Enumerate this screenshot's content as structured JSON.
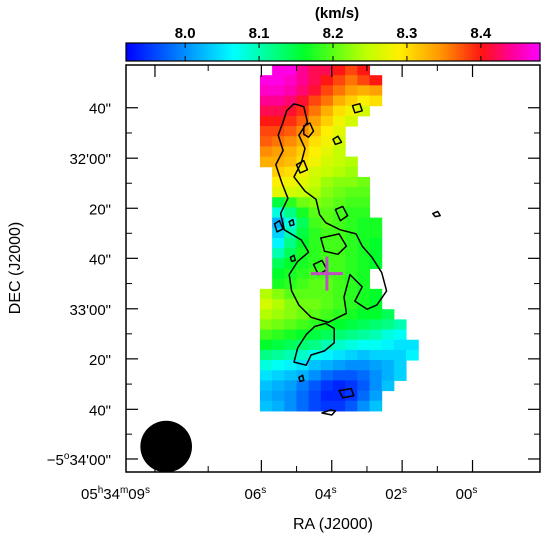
{
  "colorbar": {
    "unit_label": "(km/s)",
    "ticks": [
      {
        "value": 8.0,
        "label": "8.0"
      },
      {
        "value": 8.1,
        "label": "8.1"
      },
      {
        "value": 8.2,
        "label": "8.2"
      },
      {
        "value": 8.3,
        "label": "8.3"
      },
      {
        "value": 8.4,
        "label": "8.4"
      }
    ],
    "range": [
      7.92,
      8.48
    ]
  },
  "axes": {
    "xlabel": "RA (J2000)",
    "ylabel": "DEC (J2000)",
    "x_ticks": [
      {
        "h": "05",
        "m": "34",
        "s": "09",
        "frac": 0.07
      },
      {
        "s": "06",
        "frac": 0.327
      },
      {
        "s": "04",
        "frac": 0.497
      },
      {
        "s": "02",
        "frac": 0.667
      },
      {
        "s": "00",
        "frac": 0.837
      }
    ],
    "y_ticks": [
      {
        "label": "40\"",
        "frac": 0.105
      },
      {
        "label": "32'00\"",
        "frac": 0.229
      },
      {
        "label": "20\"",
        "frac": 0.352
      },
      {
        "label": "40\"",
        "frac": 0.475
      },
      {
        "label": "33'00\"",
        "frac": 0.599
      },
      {
        "label": "20\"",
        "frac": 0.722
      },
      {
        "label": "40\"",
        "frac": 0.846
      },
      {
        "prefix": "−5",
        "deg": "o",
        "rest": "34'00\"",
        "frac": 0.968
      }
    ]
  },
  "map": {
    "x_range": [
      0,
      34
    ],
    "y_range": [
      0,
      40
    ],
    "rows": [
      {
        "x0": 12,
        "v": [
          8.47,
          8.47,
          8.44,
          8.42,
          8.42,
          8.4,
          8.38,
          8.4
        ]
      },
      {
        "x0": 11,
        "v": [
          8.47,
          8.47,
          8.46,
          8.44,
          8.42,
          8.4,
          8.38,
          8.36,
          8.38,
          8.4
        ]
      },
      {
        "x0": 11,
        "v": [
          8.46,
          8.46,
          8.45,
          8.43,
          8.41,
          8.38,
          8.36,
          8.34,
          8.33,
          8.34
        ]
      },
      {
        "x0": 11,
        "v": [
          8.44,
          8.44,
          8.43,
          8.41,
          8.38,
          8.36,
          8.33,
          8.31,
          8.29,
          8.3
        ]
      },
      {
        "x0": 11,
        "v": [
          8.42,
          8.42,
          8.41,
          8.39,
          8.36,
          8.33,
          8.3,
          8.28,
          8.26
        ]
      },
      {
        "x0": 11,
        "v": [
          8.4,
          8.4,
          8.39,
          8.37,
          8.34,
          8.31,
          8.28,
          8.26
        ]
      },
      {
        "x0": 11,
        "v": [
          8.38,
          8.38,
          8.37,
          8.35,
          8.32,
          8.29,
          8.27
        ]
      },
      {
        "x0": 11,
        "v": [
          8.37,
          8.36,
          8.35,
          8.33,
          8.3,
          8.28,
          8.26
        ]
      },
      {
        "x0": 11,
        "v": [
          8.35,
          8.34,
          8.33,
          8.31,
          8.29,
          8.27,
          8.25
        ]
      },
      {
        "x0": 11,
        "v": [
          8.33,
          8.33,
          8.32,
          8.3,
          8.28,
          8.26,
          8.25,
          8.24
        ]
      },
      {
        "x0": 12,
        "v": [
          8.31,
          8.3,
          8.28,
          8.26,
          8.25,
          8.24,
          8.23
        ]
      },
      {
        "x0": 12,
        "v": [
          8.29,
          8.28,
          8.27,
          8.25,
          8.23,
          8.22,
          8.22,
          8.21
        ]
      },
      {
        "x0": 12,
        "v": [
          8.27,
          8.26,
          8.25,
          8.24,
          8.22,
          8.21,
          8.2,
          8.2
        ]
      },
      {
        "x0": 12,
        "v": [
          8.15,
          8.18,
          8.21,
          8.22,
          8.21,
          8.2,
          8.19,
          8.19
        ]
      },
      {
        "x0": 12,
        "v": [
          8.08,
          8.12,
          8.17,
          8.2,
          8.2,
          8.19,
          8.18,
          8.18
        ]
      },
      {
        "x0": 12,
        "v": [
          8.02,
          8.08,
          8.14,
          8.19,
          8.2,
          8.19,
          8.18,
          8.17,
          8.17
        ]
      },
      {
        "x0": 12,
        "v": [
          8.04,
          8.1,
          8.15,
          8.18,
          8.19,
          8.19,
          8.18,
          8.17,
          8.17
        ]
      },
      {
        "x0": 12,
        "v": [
          8.06,
          8.12,
          8.16,
          8.18,
          8.19,
          8.19,
          8.18,
          8.17,
          8.16
        ]
      },
      {
        "x0": 12,
        "v": [
          8.1,
          8.14,
          8.17,
          8.18,
          8.19,
          8.19,
          8.18,
          8.17,
          8.16
        ]
      },
      {
        "x0": 12,
        "v": [
          8.14,
          8.16,
          8.17,
          8.18,
          8.19,
          8.19,
          8.18,
          8.17,
          8.16
        ]
      },
      {
        "x0": 12,
        "v": [
          8.16,
          8.17,
          8.18,
          8.19,
          8.19,
          8.19,
          8.18,
          8.17
        ]
      },
      {
        "x0": 12,
        "v": [
          8.17,
          8.18,
          8.19,
          8.2,
          8.2,
          8.19,
          8.18,
          8.17
        ]
      },
      {
        "x0": 11,
        "v": [
          8.24,
          8.22,
          8.2,
          8.2,
          8.2,
          8.2,
          8.19,
          8.18,
          8.17,
          8.16
        ]
      },
      {
        "x0": 11,
        "v": [
          8.26,
          8.24,
          8.22,
          8.21,
          8.21,
          8.2,
          8.19,
          8.18,
          8.17,
          8.16
        ]
      },
      {
        "x0": 11,
        "v": [
          8.24,
          8.23,
          8.22,
          8.21,
          8.2,
          8.19,
          8.18,
          8.17,
          8.16,
          8.16,
          8.14
        ]
      },
      {
        "x0": 11,
        "v": [
          8.22,
          8.21,
          8.2,
          8.19,
          8.18,
          8.17,
          8.16,
          8.15,
          8.14,
          8.13,
          8.12,
          8.1
        ]
      },
      {
        "x0": 11,
        "v": [
          8.19,
          8.18,
          8.17,
          8.16,
          8.15,
          8.14,
          8.13,
          8.12,
          8.11,
          8.1,
          8.08,
          8.07
        ]
      },
      {
        "x0": 11,
        "v": [
          8.16,
          8.15,
          8.14,
          8.13,
          8.12,
          8.1,
          8.09,
          8.08,
          8.07,
          8.07,
          8.06,
          8.05,
          8.05
        ]
      },
      {
        "x0": 11,
        "v": [
          8.12,
          8.11,
          8.1,
          8.09,
          8.07,
          8.06,
          8.05,
          8.04,
          8.03,
          8.04,
          8.04,
          8.04,
          8.06
        ]
      },
      {
        "x0": 11,
        "v": [
          8.08,
          8.07,
          8.06,
          8.05,
          8.03,
          8.02,
          8.01,
          8.0,
          8.0,
          8.01,
          8.02,
          8.04
        ]
      },
      {
        "x0": 11,
        "v": [
          8.05,
          8.04,
          8.03,
          8.02,
          8.0,
          7.98,
          7.97,
          7.97,
          7.98,
          8.0,
          8.02,
          8.04
        ]
      },
      {
        "x0": 11,
        "v": [
          8.03,
          8.02,
          8.01,
          7.99,
          7.97,
          7.95,
          7.94,
          7.95,
          7.97,
          8.0,
          8.03
        ]
      },
      {
        "x0": 11,
        "v": [
          8.02,
          8.01,
          8.0,
          7.98,
          7.96,
          7.94,
          7.94,
          7.95,
          7.98,
          8.01
        ]
      },
      {
        "x0": 11,
        "v": [
          8.03,
          8.02,
          8.0,
          7.98,
          7.96,
          7.95,
          7.95,
          7.97,
          8.0,
          8.03
        ]
      }
    ],
    "contours": [
      [
        [
          13.2,
          4.5
        ],
        [
          13.8,
          3.8
        ],
        [
          14.6,
          4.1
        ],
        [
          14.9,
          5.6
        ],
        [
          14.2,
          6.9
        ],
        [
          14.7,
          8.2
        ],
        [
          14.4,
          9.6
        ],
        [
          13.8,
          11.0
        ],
        [
          14.7,
          12.4
        ],
        [
          15.6,
          13.2
        ],
        [
          15.9,
          14.7
        ],
        [
          16.4,
          15.5
        ],
        [
          17.6,
          16.2
        ],
        [
          18.9,
          16.6
        ],
        [
          19.4,
          17.8
        ],
        [
          20.2,
          18.9
        ],
        [
          21.0,
          20.4
        ],
        [
          21.4,
          22.2
        ],
        [
          20.6,
          23.6
        ],
        [
          19.8,
          24.0
        ],
        [
          18.8,
          23.2
        ],
        [
          19.4,
          21.8
        ],
        [
          18.4,
          20.6
        ],
        [
          17.9,
          22.8
        ],
        [
          18.1,
          24.4
        ],
        [
          16.6,
          25.3
        ],
        [
          15.2,
          24.8
        ],
        [
          14.2,
          23.6
        ],
        [
          13.6,
          22.2
        ],
        [
          13.4,
          20.6
        ],
        [
          14.1,
          19.3
        ],
        [
          15.0,
          18.4
        ],
        [
          14.4,
          17.2
        ],
        [
          13.0,
          16.2
        ],
        [
          12.7,
          14.6
        ],
        [
          13.3,
          13.1
        ],
        [
          12.8,
          11.6
        ],
        [
          12.3,
          9.8
        ],
        [
          12.9,
          8.4
        ],
        [
          12.5,
          6.9
        ],
        [
          12.9,
          5.6
        ]
      ],
      [
        [
          16.4,
          25.4
        ],
        [
          17.1,
          25.9
        ],
        [
          17.1,
          27.3
        ],
        [
          16.3,
          28.1
        ],
        [
          15.2,
          28.5
        ],
        [
          14.8,
          29.5
        ],
        [
          13.8,
          29.2
        ],
        [
          14.1,
          27.8
        ],
        [
          14.8,
          26.5
        ],
        [
          15.5,
          25.7
        ]
      ],
      [
        [
          14.6,
          6.0
        ],
        [
          15.1,
          5.7
        ],
        [
          15.4,
          6.5
        ],
        [
          15.0,
          7.1
        ],
        [
          14.6,
          6.8
        ]
      ],
      [
        [
          14.0,
          9.8
        ],
        [
          14.6,
          9.4
        ],
        [
          14.9,
          10.3
        ],
        [
          14.3,
          10.6
        ]
      ],
      [
        [
          17.2,
          14.2
        ],
        [
          17.8,
          13.9
        ],
        [
          18.2,
          14.8
        ],
        [
          17.6,
          15.3
        ]
      ],
      [
        [
          12.2,
          15.6
        ],
        [
          12.6,
          15.3
        ],
        [
          12.9,
          16.1
        ],
        [
          12.4,
          16.4
        ]
      ],
      [
        [
          16.0,
          17.0
        ],
        [
          17.5,
          16.6
        ],
        [
          18.1,
          17.8
        ],
        [
          17.4,
          18.6
        ],
        [
          16.3,
          18.3
        ]
      ],
      [
        [
          18.6,
          4.0
        ],
        [
          19.2,
          3.8
        ],
        [
          19.4,
          4.5
        ],
        [
          18.8,
          4.7
        ]
      ],
      [
        [
          17.0,
          7.3
        ],
        [
          17.4,
          7.0
        ],
        [
          17.7,
          7.6
        ],
        [
          17.2,
          7.8
        ]
      ],
      [
        [
          15.4,
          19.6
        ],
        [
          16.1,
          19.2
        ],
        [
          16.5,
          20.1
        ],
        [
          15.8,
          20.6
        ]
      ],
      [
        [
          17.5,
          32.0
        ],
        [
          18.5,
          31.8
        ],
        [
          18.7,
          32.5
        ],
        [
          17.8,
          32.7
        ]
      ],
      [
        [
          16.1,
          34.2
        ],
        [
          16.8,
          33.9
        ],
        [
          17.2,
          34.0
        ],
        [
          16.9,
          34.4
        ]
      ],
      [
        [
          14.2,
          30.7
        ],
        [
          14.5,
          30.5
        ],
        [
          14.6,
          31.0
        ],
        [
          14.3,
          31.1
        ]
      ],
      [
        [
          13.4,
          15.4
        ],
        [
          13.7,
          15.2
        ],
        [
          13.8,
          15.7
        ],
        [
          13.5,
          15.8
        ]
      ],
      [
        [
          13.5,
          18.9
        ],
        [
          13.8,
          18.7
        ],
        [
          13.9,
          19.2
        ],
        [
          13.6,
          19.3
        ]
      ],
      [
        [
          25.2,
          14.6
        ],
        [
          25.6,
          14.4
        ],
        [
          25.8,
          14.8
        ],
        [
          25.4,
          14.9
        ]
      ]
    ],
    "marker": {
      "x": 16.5,
      "y": 20.5,
      "color": "#c050c0"
    },
    "beam": {
      "x": 3.3,
      "y": 37.5,
      "radius": 2.0
    }
  }
}
